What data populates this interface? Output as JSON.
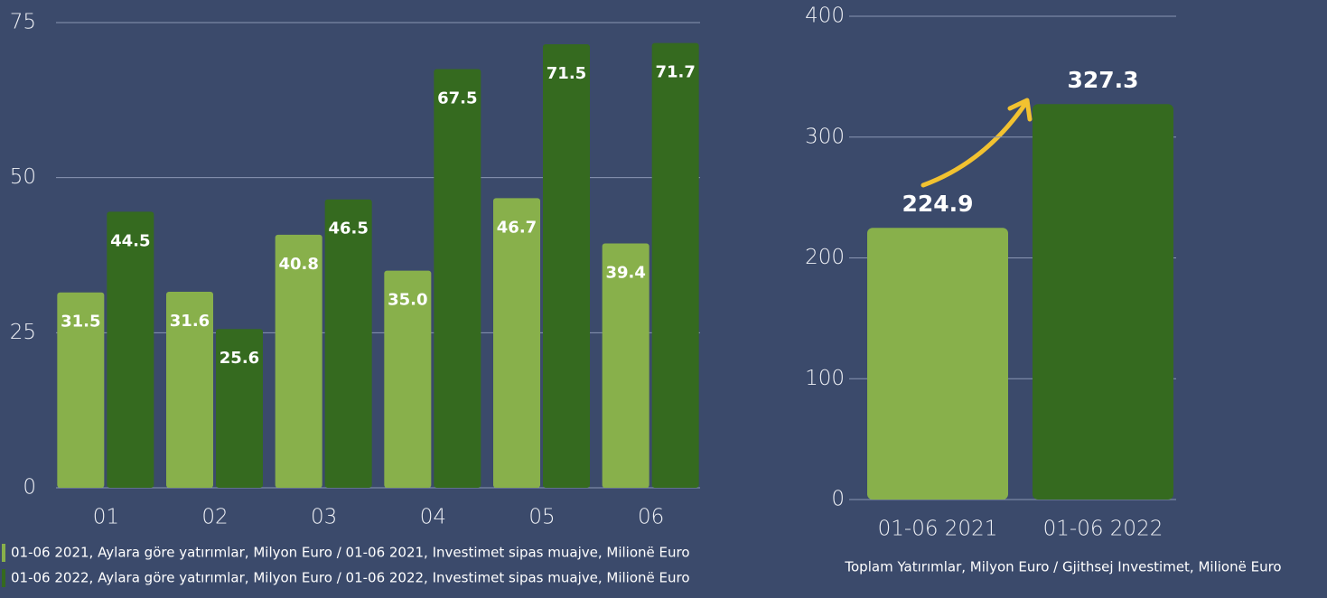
{
  "chart_data": [
    {
      "type": "grouped_bar",
      "categories": [
        "01",
        "02",
        "03",
        "04",
        "05",
        "06"
      ],
      "series": [
        {
          "name": "01-06 2021, Aylara göre yatırımlar, Milyon Euro / 01-06 2021, Investimet sipas muajve, Milionë Euro",
          "color": "#88b04b",
          "values": [
            31.5,
            31.6,
            40.8,
            35.0,
            46.7,
            39.4
          ],
          "value_labels": [
            "31.5",
            "31.6",
            "40.8",
            "35.0",
            "46.7",
            "39.4"
          ]
        },
        {
          "name": "01-06 2022, Aylara göre yatırımlar, Milyon Euro / 01-06 2022, Investimet sipas muajve, Milionë Euro",
          "color": "#356a1f",
          "values": [
            44.5,
            25.6,
            46.5,
            67.5,
            71.5,
            71.7
          ],
          "value_labels": [
            "44.5",
            "25.6",
            "46.5",
            "67.5",
            "71.5",
            "71.7"
          ]
        }
      ],
      "ylim": [
        0,
        75
      ],
      "yticks": [
        0,
        25,
        50,
        75
      ],
      "grid": true,
      "legend": "bottom"
    },
    {
      "type": "bar",
      "categories": [
        "01-06 2021",
        "01-06 2022"
      ],
      "values": [
        224.9,
        327.3
      ],
      "colors": [
        "#88b04b",
        "#356a1f"
      ],
      "xlabel": "Toplam Yatırımlar, Milyon Euro / Gjithsej Investimet, Milionë Euro",
      "ylim": [
        0,
        400
      ],
      "yticks": [
        0,
        100,
        200,
        300,
        400
      ],
      "grid": true
    }
  ]
}
